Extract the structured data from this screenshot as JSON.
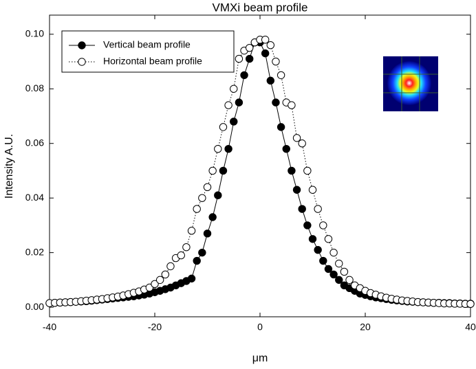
{
  "chart_data": {
    "type": "scatter",
    "title": "VMXi beam profile",
    "x_label": "μm",
    "y_label": "Intensity A.U.",
    "x": [
      -40,
      -39,
      -38,
      -37,
      -36,
      -35,
      -34,
      -33,
      -32,
      -31,
      -30,
      -29,
      -28,
      -27,
      -26,
      -25,
      -24,
      -23,
      -22,
      -21,
      -20,
      -19,
      -18,
      -17,
      -16,
      -15,
      -14,
      -13,
      -12,
      -11,
      -10,
      -9,
      -8,
      -7,
      -6,
      -5,
      -4,
      -3,
      -2,
      -1,
      0,
      1,
      2,
      3,
      4,
      5,
      6,
      7,
      8,
      9,
      10,
      11,
      12,
      13,
      14,
      15,
      16,
      17,
      18,
      19,
      20,
      21,
      22,
      23,
      24,
      25,
      26,
      27,
      28,
      29,
      30,
      31,
      32,
      33,
      34,
      35,
      36,
      37,
      38,
      39,
      40
    ],
    "series": [
      {
        "name": "Vertical beam profile",
        "color": "#000000",
        "marker": "filled",
        "line_style": "solid",
        "values": [
          0.0015,
          0.0016,
          0.0017,
          0.0018,
          0.0019,
          0.002,
          0.0021,
          0.0022,
          0.0024,
          0.0026,
          0.0028,
          0.003,
          0.0032,
          0.0034,
          0.0036,
          0.0038,
          0.004,
          0.0043,
          0.0046,
          0.005,
          0.0055,
          0.006,
          0.0066,
          0.0072,
          0.008,
          0.0088,
          0.0096,
          0.0105,
          0.017,
          0.02,
          0.027,
          0.033,
          0.041,
          0.05,
          0.058,
          0.068,
          0.075,
          0.085,
          0.091,
          0.097,
          0.097,
          0.093,
          0.083,
          0.075,
          0.066,
          0.058,
          0.05,
          0.043,
          0.036,
          0.03,
          0.025,
          0.021,
          0.017,
          0.014,
          0.012,
          0.01,
          0.008,
          0.007,
          0.006,
          0.005,
          0.0045,
          0.004,
          0.0036,
          0.0033,
          0.003,
          0.0027,
          0.0025,
          0.0023,
          0.0021,
          0.002,
          0.0019,
          0.0018,
          0.0017,
          0.0016,
          0.0016,
          0.0015,
          0.0015,
          0.0014,
          0.0014,
          0.0013,
          0.0013
        ]
      },
      {
        "name": "Horizontal beam profile",
        "color": "#000000",
        "marker": "open",
        "line_style": "dotted",
        "values": [
          0.0015,
          0.0016,
          0.0017,
          0.0018,
          0.0019,
          0.002,
          0.0022,
          0.0024,
          0.0026,
          0.0028,
          0.003,
          0.0033,
          0.0036,
          0.0039,
          0.0043,
          0.0048,
          0.0053,
          0.0058,
          0.0065,
          0.0072,
          0.0085,
          0.01,
          0.012,
          0.015,
          0.018,
          0.019,
          0.022,
          0.028,
          0.036,
          0.04,
          0.044,
          0.05,
          0.058,
          0.066,
          0.074,
          0.08,
          0.091,
          0.094,
          0.095,
          0.097,
          0.098,
          0.098,
          0.096,
          0.09,
          0.085,
          0.075,
          0.074,
          0.062,
          0.06,
          0.05,
          0.043,
          0.036,
          0.03,
          0.025,
          0.02,
          0.016,
          0.013,
          0.01,
          0.008,
          0.007,
          0.006,
          0.0052,
          0.0046,
          0.004,
          0.0035,
          0.0031,
          0.0028,
          0.0025,
          0.0023,
          0.0021,
          0.0019,
          0.0018,
          0.0017,
          0.0016,
          0.0015,
          0.0014,
          0.0014,
          0.0013,
          0.0013,
          0.0012,
          0.0012
        ]
      }
    ],
    "xlim": [
      -40,
      40
    ],
    "ylim": [
      -0.0035,
      0.107
    ],
    "xticks": [
      -40,
      -20,
      0,
      20,
      40
    ],
    "yticks": [
      {
        "value": 0,
        "label": "0.00"
      },
      {
        "value": 0.02,
        "label": "0.02"
      },
      {
        "value": 0.04,
        "label": "0.04"
      },
      {
        "value": 0.06,
        "label": "0.06"
      },
      {
        "value": 0.08,
        "label": "0.08"
      },
      {
        "value": 0.1,
        "label": "0.10"
      }
    ],
    "grid": false,
    "legend": "upper left"
  }
}
